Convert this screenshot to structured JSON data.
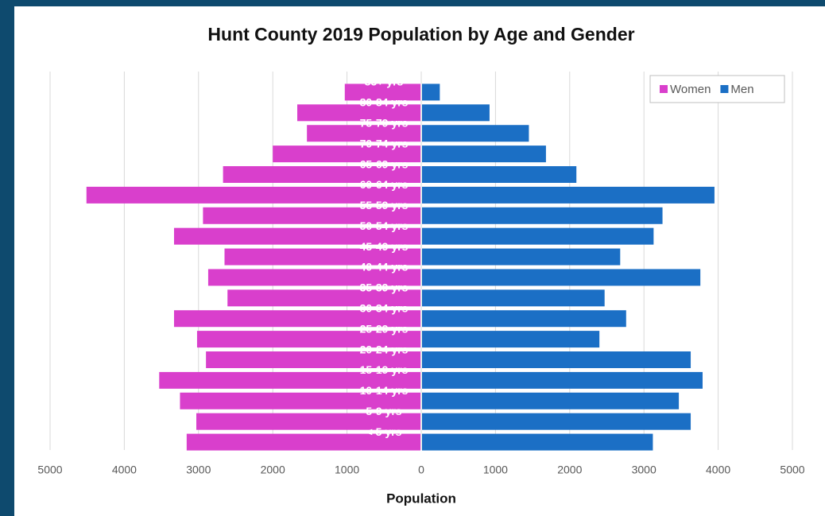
{
  "chart_data": {
    "type": "pyramid",
    "title": "Hunt County 2019 Population by Age and Gender",
    "x_label": "Population",
    "categories": [
      "85+ yrs",
      "80-84 yrs",
      "75-79 yrs",
      "70-74 yrs",
      "65-69 yrs",
      "60-64 yrs",
      "55-59 yrs",
      "50-54 yrs",
      "45-49 yrs",
      "40-44 yrs",
      "35-39 yrs",
      "30-34 yrs",
      "25-29 yrs",
      "20-24 yrs",
      "15-19 yrs",
      "10-14 yrs",
      "5-9 yrs",
      "< 5 yrs"
    ],
    "series": [
      {
        "name": "Women",
        "color": "#d93fcc",
        "values": [
          1030,
          1670,
          1540,
          2000,
          2670,
          4510,
          2940,
          3330,
          2650,
          2870,
          2610,
          3330,
          3020,
          2900,
          3530,
          3250,
          3030,
          3160
        ]
      },
      {
        "name": "Men",
        "color": "#1b6fc5",
        "values": [
          250,
          920,
          1450,
          1680,
          2090,
          3950,
          3250,
          3130,
          2680,
          3760,
          2470,
          2760,
          2400,
          3630,
          3790,
          3470,
          3630,
          3120
        ]
      }
    ],
    "xlim": [
      -5000,
      5000
    ],
    "xticks": [
      {
        "value": -5000,
        "label": "5000"
      },
      {
        "value": -4000,
        "label": "4000"
      },
      {
        "value": -3000,
        "label": "3000"
      },
      {
        "value": -2000,
        "label": "2000"
      },
      {
        "value": -1000,
        "label": "1000"
      },
      0,
      1000,
      2000,
      3000,
      4000,
      5000
    ],
    "grid": true,
    "legend": "top-right"
  }
}
